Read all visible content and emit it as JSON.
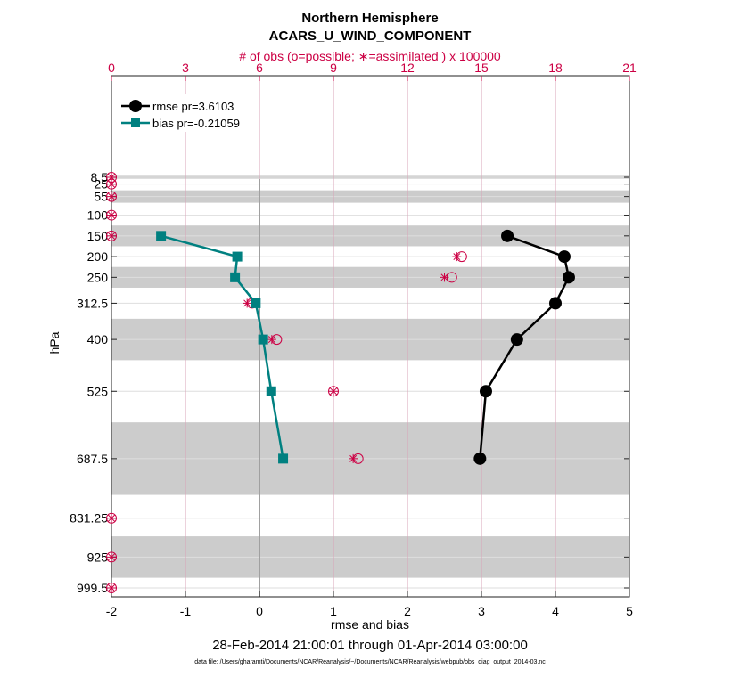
{
  "chart_data": {
    "type": "line",
    "title": "Northern Hemisphere",
    "subtitle": "ACARS_U_WIND_COMPONENT",
    "top_axis_label": "# of obs (o=possible; ∗=assimilated ) x 100000",
    "xlabel": "rmse and bias",
    "ylabel": "hPa",
    "date_range": "28-Feb-2014 21:00:01 through 01-Apr-2014 03:00:00",
    "footnote": "data file: /Users/gharamti/Documents/NCAR/Reanalysis/~/Documents/NCAR/Reanalysis/webpub/obs_diag_output_2014-03.nc",
    "xlim": [
      -2,
      5
    ],
    "x_ticks": [
      "-2",
      "-1",
      "0",
      "1",
      "2",
      "3",
      "4",
      "5"
    ],
    "top_xlim": [
      0,
      21
    ],
    "top_ticks": [
      "0",
      "3",
      "6",
      "9",
      "12",
      "15",
      "18",
      "21"
    ],
    "y_levels": [
      8.5,
      25,
      55,
      100,
      150,
      200,
      250,
      312.5,
      400,
      525,
      687.5,
      831.25,
      925,
      999.5
    ],
    "y_tick_labels": [
      "8.5",
      "25",
      "55",
      "100",
      "150",
      "200",
      "250",
      "312.5",
      "400",
      "525",
      "687.5",
      "831.25",
      "925",
      "999.5"
    ],
    "shaded_bands": [
      [
        5,
        12
      ],
      [
        40,
        70
      ],
      [
        125,
        175
      ],
      [
        225,
        275
      ],
      [
        350,
        450
      ],
      [
        600,
        775
      ],
      [
        875,
        975
      ]
    ],
    "legend_position": "top-left",
    "series": [
      {
        "name": "rmse",
        "legend": "rmse pr=3.6103",
        "color": "#000000",
        "marker": "circle",
        "points": [
          [
            3.35,
            150
          ],
          [
            4.12,
            200
          ],
          [
            4.18,
            250
          ],
          [
            4.0,
            312.5
          ],
          [
            3.48,
            400
          ],
          [
            3.06,
            525
          ],
          [
            2.98,
            687.5
          ]
        ]
      },
      {
        "name": "bias",
        "legend": "bias pr=-0.21059",
        "color": "#008080",
        "marker": "square",
        "points": [
          [
            -1.33,
            150
          ],
          [
            -0.3,
            200
          ],
          [
            -0.33,
            250
          ],
          [
            -0.05,
            312.5
          ],
          [
            0.05,
            400
          ],
          [
            0.16,
            525
          ],
          [
            0.32,
            687.5
          ]
        ]
      }
    ],
    "obs_possible": [
      [
        0,
        8.5
      ],
      [
        0,
        25
      ],
      [
        0,
        55
      ],
      [
        0,
        100
      ],
      [
        0,
        150
      ],
      [
        14.2,
        200
      ],
      [
        13.8,
        250
      ],
      [
        5.7,
        312.5
      ],
      [
        6.7,
        400
      ],
      [
        9.0,
        525
      ],
      [
        10.0,
        687.5
      ],
      [
        0,
        831.25
      ],
      [
        0,
        925
      ],
      [
        0,
        999.5
      ]
    ],
    "obs_assimilated": [
      [
        0,
        8.5
      ],
      [
        0,
        25
      ],
      [
        0,
        55
      ],
      [
        0,
        100
      ],
      [
        0,
        150
      ],
      [
        14.0,
        200
      ],
      [
        13.5,
        250
      ],
      [
        5.5,
        312.5
      ],
      [
        6.5,
        400
      ],
      [
        9.0,
        525
      ],
      [
        9.8,
        687.5
      ],
      [
        0,
        831.25
      ],
      [
        0,
        925
      ],
      [
        0,
        999.5
      ]
    ],
    "colors": {
      "obs": "#cc0044",
      "band": "#cccccc",
      "grid": "#dedede",
      "top_grid": "#d9a5b8",
      "zero_line": "#a0a0a0"
    }
  }
}
